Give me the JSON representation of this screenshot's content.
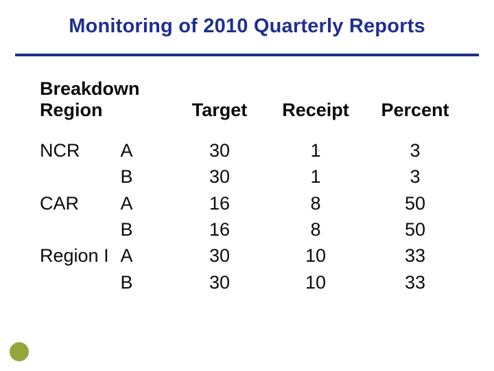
{
  "title": {
    "text": "Monitoring of 2010 Quarterly Reports",
    "color": "#1f2f8f",
    "fontsize": 29
  },
  "rule": {
    "color": "#1f2f8f"
  },
  "accent_dot": {
    "color": "#93a63b"
  },
  "table": {
    "header_left": {
      "line1": "Breakdown",
      "line2": "Region"
    },
    "columns": {
      "target": "Target",
      "receipt": "Receipt",
      "percent": "Percent"
    },
    "header_color": "#0a0a0a",
    "header_fontsize": 27,
    "body_color": "#0a0a0a",
    "body_fontsize": 27,
    "rows": [
      {
        "region": "NCR",
        "sub": "A",
        "target": "30",
        "receipt": "1",
        "percent": "3"
      },
      {
        "region": "",
        "sub": "B",
        "target": "30",
        "receipt": "1",
        "percent": "3"
      },
      {
        "region": "CAR",
        "sub": "A",
        "target": "16",
        "receipt": "8",
        "percent": "50"
      },
      {
        "region": "",
        "sub": "B",
        "target": "16",
        "receipt": "8",
        "percent": "50"
      },
      {
        "region": "Region I",
        "sub": "A",
        "target": "30",
        "receipt": "10",
        "percent": "33"
      },
      {
        "region": "",
        "sub": "B",
        "target": "30",
        "receipt": "10",
        "percent": "33"
      }
    ]
  }
}
